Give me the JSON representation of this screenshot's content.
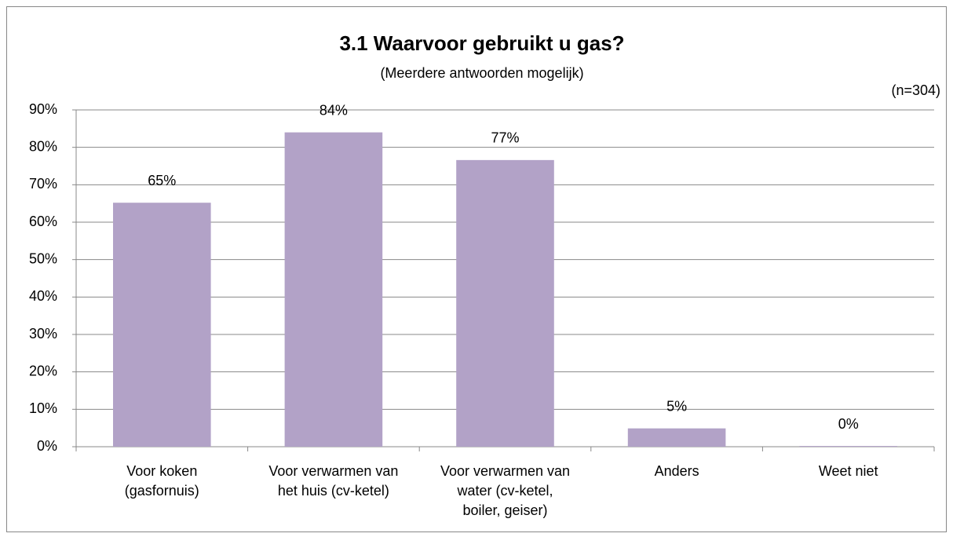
{
  "chart_data": {
    "type": "bar",
    "title": "3.1 Waarvoor gebruikt u gas?",
    "subtitle": "(Meerdere antwoorden mogelijk)",
    "annotation": "(n=304)",
    "categories": [
      [
        "Voor koken",
        "(gasfornuis)"
      ],
      [
        "Voor verwarmen van",
        "het huis (cv-ketel)"
      ],
      [
        "Voor verwarmen van",
        "water (cv-ketel,",
        "boiler, geiser)"
      ],
      [
        "Anders"
      ],
      [
        "Weet niet"
      ]
    ],
    "values": [
      65.2,
      84,
      76.6,
      4.9,
      0.2
    ],
    "value_labels": [
      "65%",
      "84%",
      "77%",
      "5%",
      "0%"
    ],
    "color": "#b2a2c7",
    "ylim": [
      0,
      90
    ],
    "yticks": [
      {
        "value": 0,
        "label": "0%"
      },
      {
        "value": 10,
        "label": "10%"
      },
      {
        "value": 20,
        "label": "20%"
      },
      {
        "value": 30,
        "label": "30%"
      },
      {
        "value": 40,
        "label": "40%"
      },
      {
        "value": 50,
        "label": "50%"
      },
      {
        "value": 60,
        "label": "60%"
      },
      {
        "value": 70,
        "label": "70%"
      },
      {
        "value": 80,
        "label": "80%"
      },
      {
        "value": 90,
        "label": "90%"
      }
    ],
    "grid": true
  }
}
